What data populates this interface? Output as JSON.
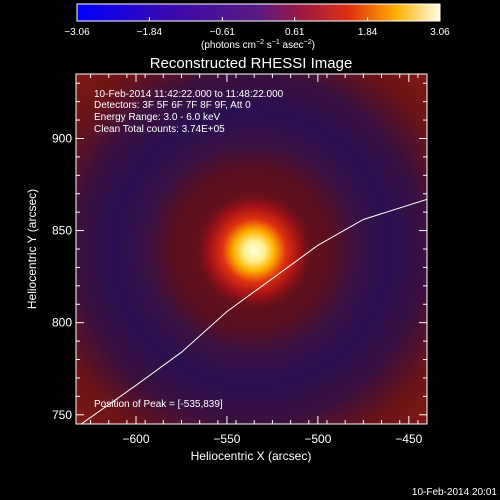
{
  "chart_data": {
    "type": "heatmap",
    "title": "Reconstructed RHESSI Image",
    "xlabel": "Heliocentric X (arcsec)",
    "ylabel": "Heliocentric Y (arcsec)",
    "xlim": [
      -633,
      -440
    ],
    "ylim": [
      745,
      935
    ],
    "x_ticks": [
      -600,
      -550,
      -500,
      -450
    ],
    "y_ticks": [
      750,
      800,
      850,
      900
    ],
    "x_tick_labels": [
      "−600",
      "−550",
      "−500",
      "−450"
    ],
    "y_tick_labels": [
      "750",
      "800",
      "850",
      "900"
    ],
    "colorbar": {
      "min": -3.06,
      "max": 3.06,
      "ticks": [
        -3.06,
        -1.84,
        -0.61,
        0.61,
        1.84,
        3.06
      ],
      "tick_labels": [
        "−3.06",
        "−1.84",
        "−0.61",
        "0.61",
        "1.84",
        "3.06"
      ],
      "unit_label_main": "(photons cm",
      "unit_sup1": "−2",
      "unit_mid": " s",
      "unit_sup2": "−1",
      "unit_mid2": " asec",
      "unit_sup3": "−2",
      "unit_end": ")"
    },
    "peak": {
      "x": -535,
      "y": 839
    },
    "limb_curve": [
      [
        -633,
        743
      ],
      [
        -600,
        766
      ],
      [
        -575,
        784
      ],
      [
        -550,
        806
      ],
      [
        -525,
        824
      ],
      [
        -500,
        842
      ],
      [
        -475,
        856
      ],
      [
        -440,
        867
      ]
    ],
    "annotations": [
      "10-Feb-2014 11:42:22.000 to 11:48:22.000",
      "Detectors: 3F 5F 6F 7F 8F 9F, Att 0",
      "Energy Range: 3.0 - 6.0 keV",
      "Clean    Total counts: 3.74E+05"
    ],
    "peak_label": "Position of Peak = [-535,839]",
    "timestamp": "10-Feb-2014 20:01"
  }
}
